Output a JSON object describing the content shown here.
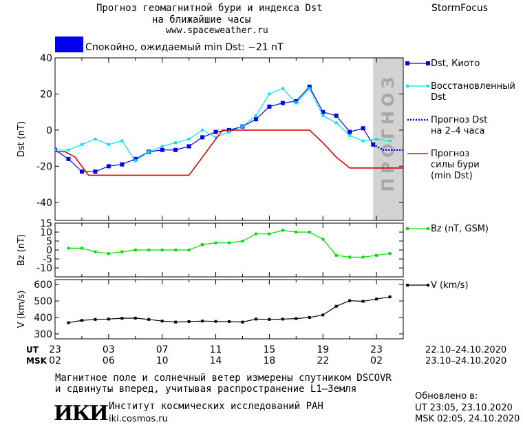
{
  "header": {
    "title_line1": "Прогноз геомагнитной бури и индекса Dst",
    "title_line2": "на ближайшие часы",
    "site": "www.spaceweather.ru",
    "brand": "StormFocus"
  },
  "status": {
    "text": "Спокойно, ожидаемый min Dst: −21 nT",
    "color": "#0000ee"
  },
  "footer": {
    "line1": "Магнитное поле и солнечный ветер измерены спутником DSCOVR",
    "line2": "и сдвинуты вперед, учитывая распространение L1–Земля",
    "logo_text": "ИКИ",
    "institute": "Институт космических исследований РАН",
    "institute_url": "iki.cosmos.ru",
    "updated_label": "Обновлено в:",
    "updated_ut": "UT   23:05, 23.10.2020",
    "updated_msk": "MSK 02:05, 24.10.2020"
  },
  "chart_data": {
    "type": "line",
    "colors": {
      "dst_kyoto": "#0000ee",
      "dst_restored": "#00e5ee",
      "dst_forecast": "#0000ee",
      "min_dst": "#dd0000",
      "bz": "#00dd00",
      "v": "#000000",
      "forecast_shade": "#d3d3d3"
    },
    "time_axis": {
      "range_hours": [
        0,
        52
      ],
      "tick_hours": [
        0,
        4,
        8,
        12,
        16,
        20,
        24,
        28,
        32,
        36,
        40,
        44,
        48,
        52
      ],
      "ut_labels": [
        "23",
        "03",
        "07",
        "11",
        "15",
        "19",
        "23",
        "03"
      ],
      "msk_labels": [
        "02",
        "06",
        "10",
        "14",
        "18",
        "22",
        "02",
        "06"
      ],
      "ut_row_label": "UT",
      "msk_row_label": "MSK",
      "ut_range_label": "22.10–24.10.2020",
      "msk_range_label": "23.10–24.10.2020"
    },
    "dst_panel": {
      "ylabel": "Dst (nT)",
      "ylim": [
        -50,
        40
      ],
      "yticks": [
        -40,
        -20,
        0,
        20,
        40
      ],
      "forecast_start_hour": 47.5,
      "forecast_label": "ПРОГНОЗ",
      "series": [
        {
          "name": "Dst, Киото",
          "key": "dst_kyoto",
          "x": [
            0,
            2,
            4,
            6,
            8,
            10,
            12,
            14,
            16,
            18,
            20,
            22,
            24,
            26,
            28,
            30,
            32,
            34,
            36,
            38,
            40,
            42,
            44,
            46,
            47.5
          ],
          "values": [
            -11,
            -16,
            -23,
            -23,
            -20,
            -19,
            -16,
            -12,
            -11,
            -11,
            -9,
            -4,
            -1,
            0,
            2,
            6,
            13,
            15,
            16,
            24,
            10,
            8,
            -1,
            1,
            -8
          ]
        },
        {
          "name": "Восстановленный Dst",
          "key": "dst_restored",
          "x": [
            0,
            2,
            4,
            6,
            8,
            10,
            12,
            14,
            16,
            18,
            20,
            22,
            24,
            26,
            28,
            30,
            32,
            34,
            36,
            38,
            40,
            42,
            44,
            46,
            48,
            50
          ],
          "values": [
            -11,
            -11,
            -8,
            -5,
            -8,
            -6,
            -17,
            -12,
            -9,
            -7,
            -5,
            0,
            -4,
            -1,
            2,
            8,
            20,
            23,
            15,
            23,
            8,
            4,
            -3,
            -6,
            -5,
            -6
          ]
        },
        {
          "name": "Прогноз Dst на 2–4 часа",
          "key": "dst_forecast",
          "x": [
            47.5,
            49,
            50,
            51,
            52
          ],
          "values": [
            -8,
            -11,
            -11,
            -11,
            -11
          ]
        },
        {
          "name": "Прогноз силы бури (min Dst)",
          "key": "min_dst",
          "x": [
            0,
            1.5,
            3,
            5,
            10,
            20,
            25,
            28,
            32,
            38,
            40,
            42,
            44,
            52
          ],
          "values": [
            -12,
            -12,
            -15,
            -25,
            -25,
            -25,
            0,
            0,
            0,
            0,
            -7,
            -15,
            -21,
            -21
          ]
        }
      ],
      "legend": [
        {
          "label": "Dst, Киото",
          "key": "dst_kyoto"
        },
        {
          "label": "Восстановленный\nDst",
          "key": "dst_restored"
        },
        {
          "label": "Прогноз Dst\nна 2–4 часа",
          "key": "dst_forecast"
        },
        {
          "label": "Прогноз\nсилы бури\n(min Dst)",
          "key": "min_dst"
        }
      ]
    },
    "bz_panel": {
      "ylabel": "Bz (nT)",
      "ylim": [
        -15,
        15
      ],
      "yticks": [
        -10,
        -5,
        0,
        5,
        10,
        15
      ],
      "series": [
        {
          "name": "Bz (nT, GSM)",
          "key": "bz",
          "x": [
            2,
            4,
            6,
            8,
            10,
            12,
            14,
            16,
            18,
            20,
            22,
            24,
            26,
            28,
            30,
            32,
            34,
            36,
            38,
            40,
            42,
            44,
            46,
            48,
            50
          ],
          "values": [
            1,
            1,
            -1,
            -2,
            -1,
            0,
            0,
            0,
            0,
            0,
            3,
            4,
            4,
            5,
            9,
            9,
            11,
            10,
            10,
            6,
            -3,
            -4,
            -4,
            -3,
            -2
          ]
        }
      ],
      "legend": [
        {
          "label": "Bz (nT, GSM)",
          "key": "bz"
        }
      ]
    },
    "v_panel": {
      "ylabel": "V (km/s)",
      "ylim": [
        270,
        630
      ],
      "yticks": [
        300,
        400,
        500,
        600
      ],
      "series": [
        {
          "name": "V (km/s)",
          "key": "v",
          "x": [
            2,
            4,
            6,
            8,
            10,
            12,
            14,
            16,
            18,
            20,
            22,
            24,
            26,
            28,
            30,
            32,
            34,
            36,
            38,
            40,
            42,
            44,
            46,
            48,
            50
          ],
          "values": [
            368,
            382,
            388,
            390,
            395,
            396,
            388,
            378,
            372,
            375,
            378,
            376,
            375,
            372,
            390,
            388,
            390,
            393,
            400,
            415,
            468,
            502,
            498,
            512,
            525
          ]
        }
      ],
      "legend": [
        {
          "label": "V (km/s)",
          "key": "v"
        }
      ]
    }
  }
}
